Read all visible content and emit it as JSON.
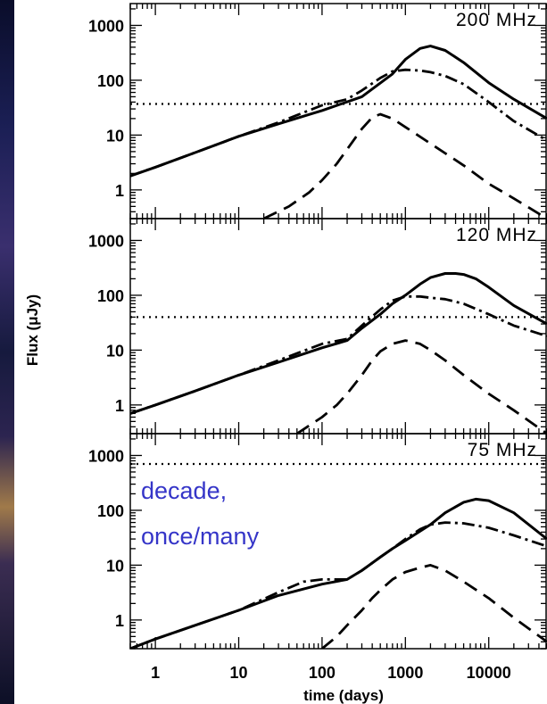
{
  "chart_data": {
    "type": "line",
    "xlabel": "time (days)",
    "ylabel": "Flux (μJy)",
    "xscale": "log",
    "yscale": "log",
    "xlim": [
      0.5,
      50000
    ],
    "x_ticks": [
      1,
      10,
      100,
      1000,
      10000
    ],
    "x_tick_labels": [
      "1",
      "10",
      "100",
      "1000",
      "10000"
    ],
    "y_ticks": [
      1,
      10,
      100,
      1000
    ],
    "y_tick_labels": [
      "1",
      "10",
      "100",
      "1000"
    ],
    "colors": {
      "curves": "#000000",
      "annotation": "#3535c8"
    },
    "panels": [
      {
        "label": "200 MHz",
        "ylim": [
          0.3,
          2500
        ],
        "threshold": 37,
        "series": [
          {
            "style": "solid",
            "x": [
              0.5,
              1,
              3,
              10,
              30,
              100,
              300,
              700,
              1000,
              1500,
              2000,
              3000,
              5000,
              10000,
              20000,
              50000
            ],
            "y": [
              1.8,
              2.6,
              4.8,
              9.5,
              16,
              28,
              50,
              130,
              240,
              380,
              420,
              350,
              210,
              90,
              45,
              20
            ]
          },
          {
            "style": "dashdot",
            "x": [
              0.5,
              1,
              3,
              10,
              30,
              100,
              200,
              300,
              500,
              700,
              1000,
              1500,
              2000,
              3000,
              5000,
              10000,
              20000,
              50000
            ],
            "y": [
              1.8,
              2.6,
              4.8,
              9.5,
              17,
              35,
              45,
              65,
              110,
              145,
              155,
              150,
              140,
              120,
              85,
              40,
              18,
              8
            ]
          },
          {
            "style": "dashed",
            "x": [
              20,
              40,
              70,
              100,
              150,
              200,
              300,
              400,
              500,
              700,
              1000,
              2000,
              5000,
              10000,
              20000,
              50000
            ],
            "y": [
              0.3,
              0.5,
              0.9,
              1.5,
              3,
              5.5,
              13,
              21,
              24,
              20,
              14,
              7,
              2.8,
              1.3,
              0.7,
              0.3
            ]
          }
        ]
      },
      {
        "label": "120 MHz",
        "ylim": [
          0.3,
          2500
        ],
        "threshold": 40,
        "series": [
          {
            "style": "solid",
            "x": [
              0.5,
              1,
              3,
              10,
              30,
              100,
              200,
              300,
              500,
              700,
              1000,
              1500,
              2000,
              3000,
              4000,
              5000,
              7000,
              10000,
              20000,
              50000
            ],
            "y": [
              0.7,
              1,
              1.8,
              3.5,
              6,
              11,
              15,
              25,
              45,
              70,
              100,
              160,
              210,
              250,
              250,
              240,
              200,
              140,
              65,
              30
            ]
          },
          {
            "style": "dashdot",
            "x": [
              0.5,
              1,
              3,
              10,
              30,
              100,
              200,
              300,
              500,
              700,
              1000,
              1500,
              2000,
              3000,
              5000,
              10000,
              20000,
              50000
            ],
            "y": [
              0.7,
              1,
              1.8,
              3.5,
              6.5,
              13,
              16,
              28,
              55,
              80,
              95,
              95,
              90,
              85,
              70,
              45,
              28,
              18
            ]
          },
          {
            "style": "dashed",
            "x": [
              50,
              100,
              150,
              200,
              300,
              400,
              500,
              700,
              1000,
              1500,
              2000,
              3000,
              5000,
              10000,
              20000,
              50000
            ],
            "y": [
              0.3,
              0.6,
              1,
              1.6,
              3.5,
              6.5,
              9.5,
              13,
              15,
              13,
              10,
              6.5,
              3.5,
              1.6,
              0.8,
              0.3
            ]
          }
        ]
      },
      {
        "label": "75 MHz",
        "ylim": [
          0.3,
          2500
        ],
        "threshold": 700,
        "series": [
          {
            "style": "solid",
            "x": [
              0.5,
              1,
              3,
              10,
              30,
              100,
              200,
              300,
              500,
              700,
              1000,
              2000,
              3000,
              5000,
              7000,
              10000,
              20000,
              50000
            ],
            "y": [
              0.3,
              0.45,
              0.8,
              1.5,
              2.8,
              4.5,
              5.5,
              8,
              14,
              20,
              28,
              55,
              90,
              140,
              160,
              150,
              90,
              30
            ]
          },
          {
            "style": "dashdot",
            "x": [
              0.5,
              1,
              3,
              10,
              30,
              60,
              100,
              200,
              300,
              500,
              700,
              1000,
              1500,
              2000,
              3000,
              5000,
              10000,
              20000,
              50000
            ],
            "y": [
              0.3,
              0.45,
              0.8,
              1.5,
              3.2,
              5,
              5.5,
              5.5,
              8,
              14,
              20,
              30,
              45,
              55,
              60,
              58,
              48,
              35,
              22
            ]
          },
          {
            "style": "dashed",
            "x": [
              100,
              150,
              200,
              300,
              400,
              500,
              700,
              1000,
              1500,
              2000,
              3000,
              5000,
              10000,
              20000,
              50000
            ],
            "y": [
              0.3,
              0.5,
              0.8,
              1.5,
              2.5,
              3.5,
              5.5,
              7.5,
              9,
              10,
              8,
              5,
              2.5,
              1.1,
              0.4
            ]
          }
        ]
      }
    ]
  },
  "annotation": {
    "line1": "decade,",
    "line2": "once/many"
  }
}
